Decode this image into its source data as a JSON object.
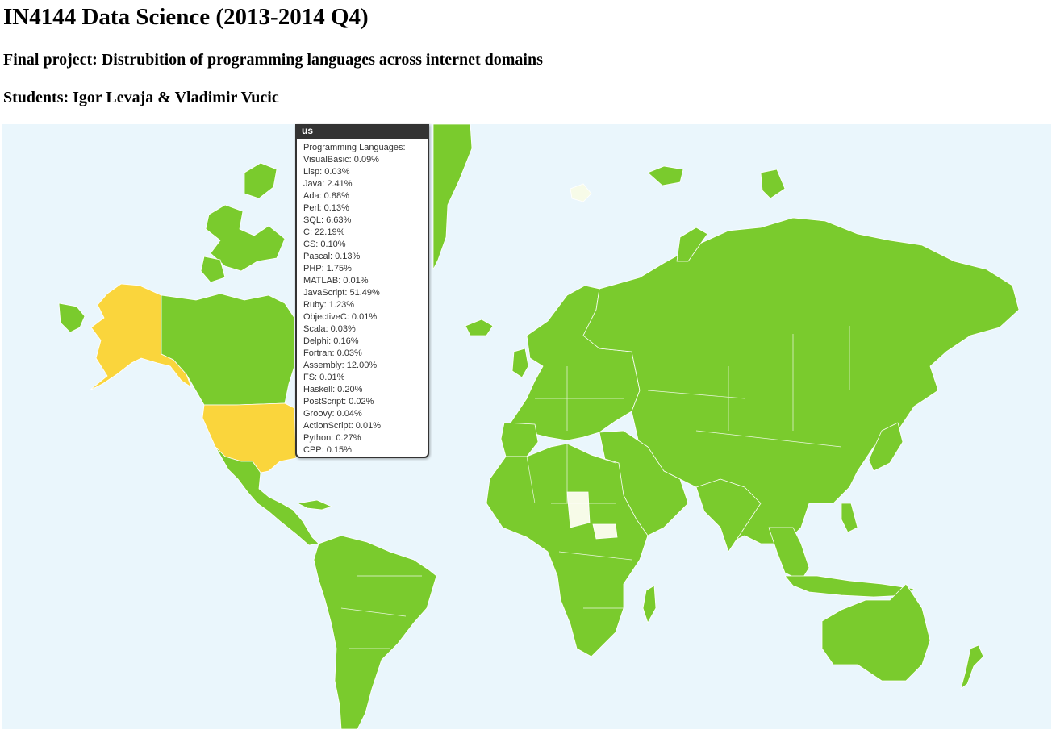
{
  "page": {
    "title": "IN4144 Data Science (2013-2014 Q4)",
    "subtitle": "Final project: Distrubition of programming languages across internet domains",
    "students": "Students: Igor Levaja & Vladimir Vucic"
  },
  "map": {
    "colors": {
      "ocean": "#eaf6fc",
      "country": "#7acb2d",
      "highlight": "#fad53c",
      "no_data": "#f7fbe8"
    },
    "highlighted_country": "us"
  },
  "tooltip": {
    "title": "us",
    "heading": "Programming Languages:",
    "items": [
      "VisualBasic: 0.09%",
      "Lisp: 0.03%",
      "Java: 2.41%",
      "Ada: 0.88%",
      "Perl: 0.13%",
      "SQL: 6.63%",
      "C: 22.19%",
      "CS: 0.10%",
      "Pascal: 0.13%",
      "PHP: 1.75%",
      "MATLAB: 0.01%",
      "JavaScript: 51.49%",
      "Ruby: 1.23%",
      "ObjectiveC: 0.01%",
      "Scala: 0.03%",
      "Delphi: 0.16%",
      "Fortran: 0.03%",
      "Assembly: 12.00%",
      "FS: 0.01%",
      "Haskell: 0.20%",
      "PostScript: 0.02%",
      "Groovy: 0.04%",
      "ActionScript: 0.01%",
      "Python: 0.27%",
      "CPP: 0.15%"
    ]
  }
}
